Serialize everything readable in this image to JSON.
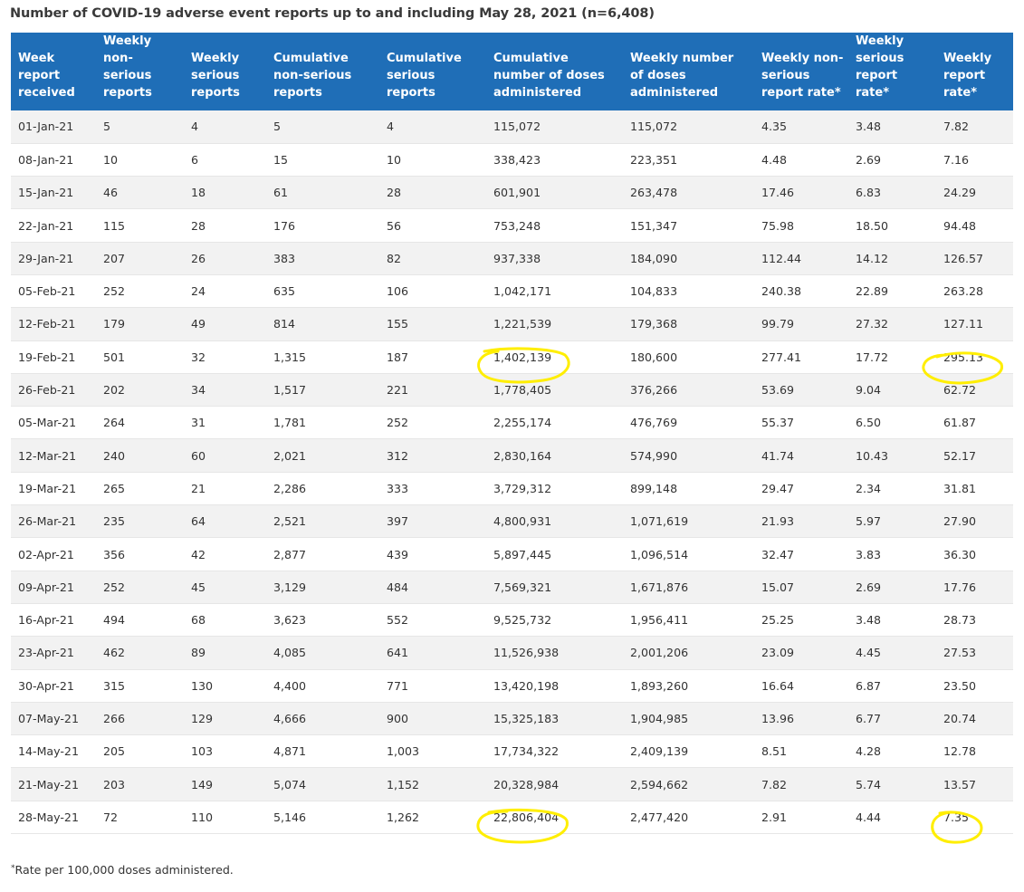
{
  "title": "Number of COVID-19 adverse event reports up to and including May 28, 2021 (n=6,408)",
  "headers": [
    "Week report received",
    "Weekly non-serious reports",
    "Weekly serious reports",
    "Cumulative non-serious reports",
    "Cumulative serious reports",
    "Cumulative number of doses administered",
    "Weekly number of doses administered",
    "Weekly non-serious report rate*",
    "Weekly serious report rate*",
    "Weekly report rate*"
  ],
  "rows": [
    [
      "01-Jan-21",
      "5",
      "4",
      "5",
      "4",
      "115,072",
      "115,072",
      "4.35",
      "3.48",
      "7.82"
    ],
    [
      "08-Jan-21",
      "10",
      "6",
      "15",
      "10",
      "338,423",
      "223,351",
      "4.48",
      "2.69",
      "7.16"
    ],
    [
      "15-Jan-21",
      "46",
      "18",
      "61",
      "28",
      "601,901",
      "263,478",
      "17.46",
      "6.83",
      "24.29"
    ],
    [
      "22-Jan-21",
      "115",
      "28",
      "176",
      "56",
      "753,248",
      "151,347",
      "75.98",
      "18.50",
      "94.48"
    ],
    [
      "29-Jan-21",
      "207",
      "26",
      "383",
      "82",
      "937,338",
      "184,090",
      "112.44",
      "14.12",
      "126.57"
    ],
    [
      "05-Feb-21",
      "252",
      "24",
      "635",
      "106",
      "1,042,171",
      "104,833",
      "240.38",
      "22.89",
      "263.28"
    ],
    [
      "12-Feb-21",
      "179",
      "49",
      "814",
      "155",
      "1,221,539",
      "179,368",
      "99.79",
      "27.32",
      "127.11"
    ],
    [
      "19-Feb-21",
      "501",
      "32",
      "1,315",
      "187",
      "1,402,139",
      "180,600",
      "277.41",
      "17.72",
      "295.13"
    ],
    [
      "26-Feb-21",
      "202",
      "34",
      "1,517",
      "221",
      "1,778,405",
      "376,266",
      "53.69",
      "9.04",
      "62.72"
    ],
    [
      "05-Mar-21",
      "264",
      "31",
      "1,781",
      "252",
      "2,255,174",
      "476,769",
      "55.37",
      "6.50",
      "61.87"
    ],
    [
      "12-Mar-21",
      "240",
      "60",
      "2,021",
      "312",
      "2,830,164",
      "574,990",
      "41.74",
      "10.43",
      "52.17"
    ],
    [
      "19-Mar-21",
      "265",
      "21",
      "2,286",
      "333",
      "3,729,312",
      "899,148",
      "29.47",
      "2.34",
      "31.81"
    ],
    [
      "26-Mar-21",
      "235",
      "64",
      "2,521",
      "397",
      "4,800,931",
      "1,071,619",
      "21.93",
      "5.97",
      "27.90"
    ],
    [
      "02-Apr-21",
      "356",
      "42",
      "2,877",
      "439",
      "5,897,445",
      "1,096,514",
      "32.47",
      "3.83",
      "36.30"
    ],
    [
      "09-Apr-21",
      "252",
      "45",
      "3,129",
      "484",
      "7,569,321",
      "1,671,876",
      "15.07",
      "2.69",
      "17.76"
    ],
    [
      "16-Apr-21",
      "494",
      "68",
      "3,623",
      "552",
      "9,525,732",
      "1,956,411",
      "25.25",
      "3.48",
      "28.73"
    ],
    [
      "23-Apr-21",
      "462",
      "89",
      "4,085",
      "641",
      "11,526,938",
      "2,001,206",
      "23.09",
      "4.45",
      "27.53"
    ],
    [
      "30-Apr-21",
      "315",
      "130",
      "4,400",
      "771",
      "13,420,198",
      "1,893,260",
      "16.64",
      "6.87",
      "23.50"
    ],
    [
      "07-May-21",
      "266",
      "129",
      "4,666",
      "900",
      "15,325,183",
      "1,904,985",
      "13.96",
      "6.77",
      "20.74"
    ],
    [
      "14-May-21",
      "205",
      "103",
      "4,871",
      "1,003",
      "17,734,322",
      "2,409,139",
      "8.51",
      "4.28",
      "12.78"
    ],
    [
      "21-May-21",
      "203",
      "149",
      "5,074",
      "1,152",
      "20,328,984",
      "2,594,662",
      "7.82",
      "5.74",
      "13.57"
    ],
    [
      "28-May-21",
      "72",
      "110",
      "5,146",
      "1,262",
      "22,806,404",
      "2,477,420",
      "2.91",
      "4.44",
      "7.35"
    ]
  ],
  "highlight_color": "#ffee00",
  "footnote": {
    "mark": "*",
    "text": "Rate per 100,000 doses administered."
  }
}
